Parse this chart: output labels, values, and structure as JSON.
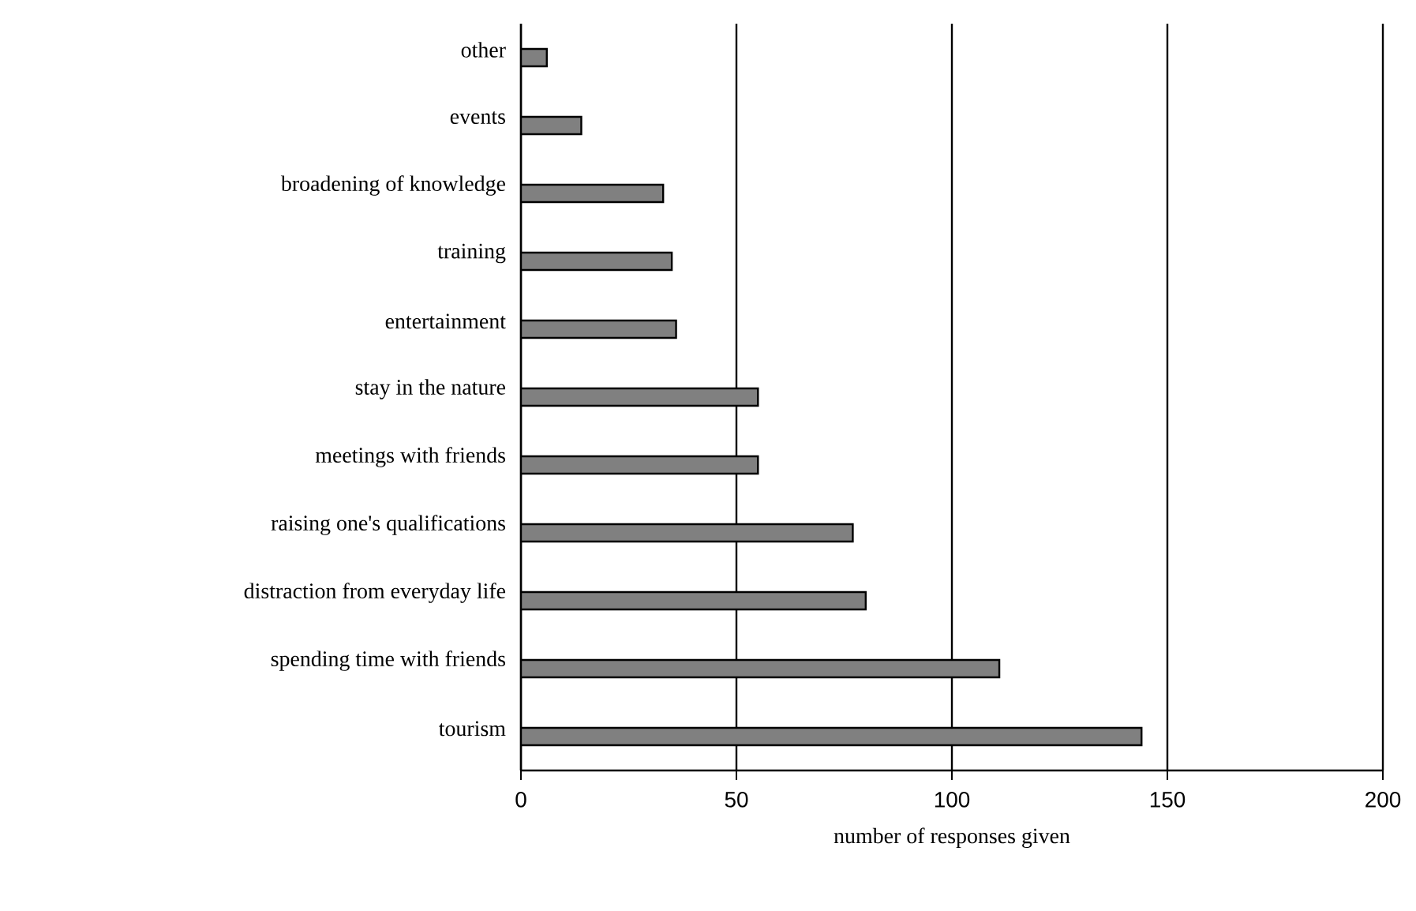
{
  "chart_data": {
    "type": "bar",
    "orientation": "horizontal",
    "xlabel": "number of responses given",
    "categories": [
      "other",
      "events",
      "broadening of knowledge",
      "training",
      "entertainment",
      "stay in the nature",
      "meetings with friends",
      "raising one's qualifications",
      "distraction from everyday life",
      "spending time with friends",
      "tourism"
    ],
    "values": [
      6,
      14,
      33,
      35,
      36,
      55,
      55,
      77,
      80,
      111,
      144
    ],
    "color": "#808080",
    "xlim": [
      0,
      200
    ],
    "xticks": [
      0,
      50,
      100,
      150,
      200
    ],
    "grid": "x"
  }
}
